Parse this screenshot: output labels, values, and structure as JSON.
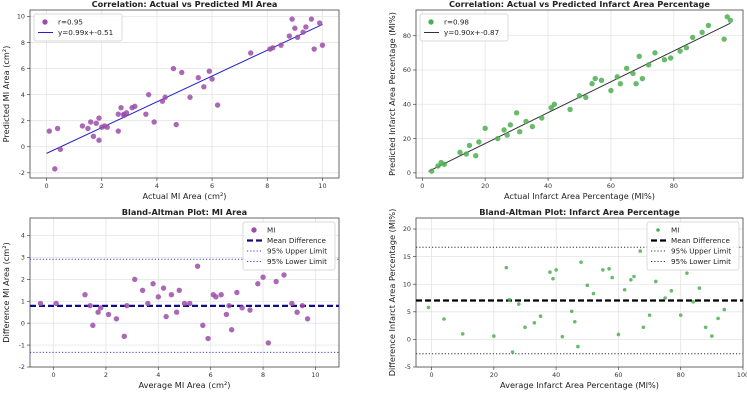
{
  "chart_data": [
    {
      "type": "scatter",
      "title": "Correlation: Actual vs Predicted MI Area",
      "xlabel": "Actual MI Area (cm²)",
      "ylabel": "Predicted MI Area (cm²)",
      "xlim": [
        -0.6,
        10.6
      ],
      "ylim": [
        -2.4,
        10.5
      ],
      "xticks": [
        0,
        2,
        4,
        6,
        8,
        10
      ],
      "yticks": [
        -2,
        0,
        2,
        4,
        6,
        8,
        10
      ],
      "grid": true,
      "legend_position": "top-left",
      "color": "#9b4ea8",
      "line_color": "#2222cc",
      "series": [
        {
          "name": "r=0.95",
          "kind": "scatter",
          "x": [
            0.1,
            0.3,
            0.4,
            0.5,
            1.3,
            1.5,
            1.6,
            1.7,
            1.8,
            1.9,
            1.9,
            2.0,
            2.1,
            2.2,
            2.6,
            2.6,
            2.7,
            2.8,
            2.8,
            2.9,
            3.1,
            3.2,
            3.6,
            3.7,
            3.9,
            4.2,
            4.3,
            4.6,
            4.7,
            4.9,
            5.2,
            5.5,
            5.7,
            5.9,
            6.0,
            6.2,
            7.4,
            8.1,
            8.2,
            8.5,
            8.8,
            8.9,
            9.0,
            9.1,
            9.3,
            9.4,
            9.6,
            9.7,
            9.9,
            10.0
          ],
          "y": [
            1.2,
            -1.7,
            1.4,
            -0.2,
            1.6,
            1.4,
            1.9,
            0.8,
            1.8,
            0.5,
            2.2,
            1.5,
            1.6,
            1.5,
            2.5,
            1.2,
            3.0,
            2.5,
            2.4,
            2.6,
            3.0,
            3.1,
            2.5,
            4.0,
            1.9,
            3.5,
            3.8,
            6.0,
            1.7,
            5.7,
            3.8,
            5.3,
            4.6,
            5.8,
            5.2,
            3.2,
            7.2,
            7.5,
            7.6,
            7.8,
            8.5,
            9.8,
            9.1,
            8.4,
            8.8,
            9.2,
            9.8,
            7.5,
            9.5,
            7.8
          ]
        },
        {
          "name": "y=0.99x+-0.51",
          "kind": "line",
          "x": [
            0,
            10
          ],
          "y": [
            -0.51,
            9.39
          ]
        }
      ]
    },
    {
      "type": "scatter",
      "title": "Correlation: Actual vs Predicted Infarct Area Percentage",
      "xlabel": "Actual Infarct Area Percentage (MI%)",
      "ylabel": "Predicted Infarct Area Percentage (MI%)",
      "xlim": [
        -2,
        102
      ],
      "ylim": [
        -3,
        95
      ],
      "xticks": [
        0,
        20,
        40,
        60,
        80
      ],
      "yticks": [
        0,
        20,
        40,
        60,
        80
      ],
      "grid": true,
      "legend_position": "top-left",
      "color": "#4caf50",
      "line_color": "#333333",
      "series": [
        {
          "name": "r=0.98",
          "kind": "scatter",
          "x": [
            3,
            5,
            6,
            7,
            12,
            14,
            15,
            17,
            18,
            20,
            24,
            26,
            27,
            28,
            30,
            31,
            33,
            35,
            38,
            41,
            42,
            47,
            50,
            52,
            54,
            55,
            57,
            60,
            62,
            63,
            65,
            67,
            68,
            69,
            70,
            72,
            74,
            77,
            79,
            82,
            84,
            86,
            89,
            91,
            96,
            97,
            98
          ],
          "y": [
            1,
            4,
            6,
            5,
            12,
            11,
            16,
            10,
            18,
            26,
            20,
            25,
            22,
            28,
            35,
            24,
            30,
            27,
            32,
            38,
            40,
            37,
            45,
            44,
            52,
            55,
            54,
            48,
            56,
            52,
            61,
            58,
            52,
            68,
            55,
            63,
            70,
            66,
            67,
            71,
            73,
            79,
            82,
            86,
            78,
            91,
            89
          ]
        },
        {
          "name": "y=0.90x+-0.87",
          "kind": "line",
          "x": [
            2,
            98
          ],
          "y": [
            0.93,
            87.33
          ]
        }
      ]
    },
    {
      "type": "scatter",
      "title": "Bland-Altman Plot: MI Area",
      "xlabel": "Average MI Area (cm²)",
      "ylabel": "Difference MI Area (cm²)",
      "xlim": [
        -0.9,
        10.9
      ],
      "ylim": [
        -2,
        4.8
      ],
      "xticks": [
        0,
        2,
        4,
        6,
        8,
        10
      ],
      "xtick_labels": [
        "0",
        "2",
        "4",
        "6",
        "8",
        "10"
      ],
      "yticks": [
        -2,
        -1,
        0,
        1,
        2,
        3,
        4
      ],
      "grid": true,
      "legend_position": "top-right",
      "color": "#9b4ea8",
      "mean_difference": 0.79,
      "upper_limit": 2.92,
      "lower_limit": -1.33,
      "series": [
        {
          "name": "MI",
          "kind": "scatter",
          "x": [
            -0.5,
            0.1,
            1.2,
            1.4,
            1.5,
            1.7,
            1.8,
            2.1,
            2.4,
            2.7,
            2.8,
            3.1,
            3.4,
            3.6,
            3.8,
            4.0,
            4.2,
            4.3,
            4.5,
            4.7,
            4.8,
            5.0,
            5.2,
            5.5,
            5.7,
            5.9,
            6.1,
            6.2,
            6.4,
            6.6,
            6.7,
            6.8,
            7.0,
            7.2,
            7.5,
            7.8,
            8.0,
            8.2,
            8.5,
            8.8,
            9.1,
            9.3,
            9.5,
            9.7
          ],
          "y": [
            0.9,
            0.9,
            1.3,
            0.8,
            -0.1,
            0.5,
            0.7,
            0.4,
            0.2,
            -0.6,
            0.8,
            2.0,
            1.5,
            0.9,
            1.8,
            1.2,
            1.6,
            0.3,
            1.3,
            0.5,
            1.5,
            0.9,
            0.9,
            2.6,
            -0.1,
            -0.7,
            1.3,
            1.2,
            1.3,
            0.4,
            0.8,
            -0.3,
            1.4,
            0.7,
            0.6,
            1.8,
            2.1,
            -0.9,
            1.9,
            2.2,
            0.9,
            0.5,
            0.8,
            0.2
          ]
        }
      ]
    },
    {
      "type": "scatter",
      "title": "Bland-Altman Plot: Infarct Area Percentage",
      "xlabel": "Average Infarct Area Percentage (MI%)",
      "ylabel": "Difference Infarct Area Percentage (MI%)",
      "xlim": [
        -5,
        100
      ],
      "ylim": [
        -5,
        22
      ],
      "xticks": [
        0,
        20,
        40,
        60,
        80,
        100
      ],
      "xtick_labels": [
        "0",
        "20",
        "40",
        "60",
        "80",
        "100"
      ],
      "yticks": [
        -5,
        0,
        5,
        10,
        15,
        20
      ],
      "grid": true,
      "legend_position": "top-right",
      "color": "#4caf50",
      "mean_difference": 7.05,
      "upper_limit": 16.7,
      "lower_limit": -2.6,
      "series": [
        {
          "name": "MI",
          "kind": "scatter",
          "x": [
            -1,
            4,
            10,
            20,
            24,
            25,
            26,
            28,
            30,
            33,
            35,
            38,
            39,
            40,
            42,
            45,
            46,
            47,
            48,
            50,
            52,
            55,
            57,
            58,
            60,
            62,
            64,
            65,
            67,
            68,
            70,
            72,
            75,
            77,
            80,
            82,
            84,
            86,
            88,
            90,
            92,
            94
          ],
          "y": [
            5.8,
            3.7,
            1.0,
            0.6,
            13.0,
            7.2,
            -2.3,
            6.4,
            2.2,
            3.0,
            4.2,
            12.2,
            11.0,
            12.6,
            0.5,
            5.1,
            3.2,
            -1.3,
            14.0,
            9.8,
            8.3,
            12.6,
            12.8,
            11.2,
            0.9,
            9.0,
            10.8,
            11.4,
            16.0,
            2.2,
            4.4,
            10.5,
            7.5,
            8.8,
            4.4,
            12.0,
            6.8,
            9.3,
            2.2,
            0.6,
            3.8,
            5.4
          ]
        }
      ]
    }
  ]
}
